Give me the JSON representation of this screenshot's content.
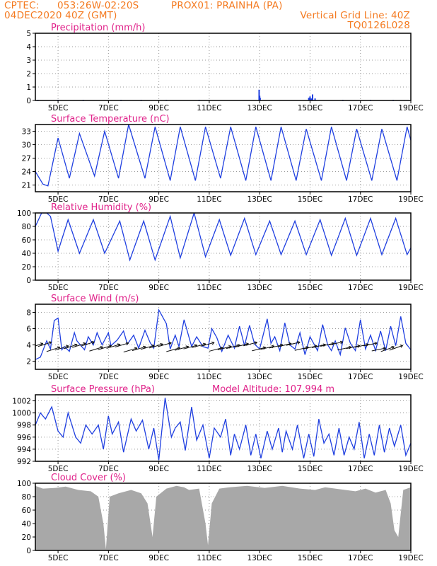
{
  "header": {
    "line1_left": "CPTEC:",
    "line1_coords": "053:26W-02:20S",
    "line1_station": "PROX01: PRAINHA (PA)",
    "line2_left": "04DEC2020 40Z (GMT)",
    "line2_right": "Vertical Grid Line: 40Z",
    "line3_right": "TQ0126L028"
  },
  "colors": {
    "header": "#f47a20",
    "title": "#e0228a",
    "series": "#1f3fe0",
    "cloud": "#a8a8a8",
    "arrows": "#111111"
  },
  "x_axis": {
    "ticks": [
      "5DEC",
      "7DEC",
      "9DEC",
      "11DEC",
      "13DEC",
      "15DEC",
      "17DEC",
      "19DEC"
    ],
    "tick_pos": [
      5,
      7,
      9,
      11,
      13,
      15,
      17,
      19
    ],
    "range": [
      4.1,
      19
    ]
  },
  "chart_data": [
    {
      "type": "bar",
      "title": "Precipitation (mm/h)",
      "ylim": [
        0,
        5
      ],
      "yticks": [
        "0",
        "1",
        "2",
        "3",
        "4",
        "5"
      ],
      "base": 0,
      "x": [
        4.2,
        5.0,
        6.0,
        7.5,
        8.3,
        9.3,
        10.6,
        12.98,
        13.0,
        13.02,
        14.95,
        15.0,
        15.05,
        15.1,
        15.2,
        16.3,
        17.4,
        18.3
      ],
      "values": [
        0.05,
        0.05,
        0.05,
        0.05,
        0.05,
        0.05,
        0.05,
        0.8,
        0.35,
        0.2,
        0.2,
        0.3,
        0.15,
        0.45,
        0.15,
        0.05,
        0.05,
        0.05
      ]
    },
    {
      "type": "line",
      "title": "Surface Temperature (nC)",
      "ylim": [
        19.5,
        34.5
      ],
      "yticks": [
        "21",
        "24",
        "27",
        "30",
        "33"
      ],
      "x": [
        4.1,
        4.4,
        4.6,
        5.0,
        5.45,
        5.85,
        6.45,
        6.85,
        7.4,
        7.8,
        8.45,
        8.85,
        9.45,
        9.85,
        10.45,
        10.85,
        11.45,
        11.85,
        12.45,
        12.85,
        13.45,
        13.85,
        14.45,
        14.85,
        15.45,
        15.85,
        16.45,
        16.85,
        17.45,
        17.85,
        18.45,
        18.85,
        19.0
      ],
      "values": [
        24,
        21.2,
        20.8,
        31.5,
        22.5,
        32.5,
        23,
        33,
        22.5,
        34.5,
        22.5,
        34,
        22,
        34,
        22,
        34,
        22.5,
        34,
        22,
        34,
        22,
        34,
        22,
        33.5,
        22,
        34,
        22,
        33.5,
        22,
        33.5,
        22,
        34,
        31
      ]
    },
    {
      "type": "line",
      "title": "Relative Humidity (%)",
      "ylim": [
        0,
        100
      ],
      "yticks": [
        "0",
        "20",
        "40",
        "60",
        "80",
        "100"
      ],
      "x": [
        4.1,
        4.35,
        4.55,
        4.7,
        5.0,
        5.4,
        5.85,
        6.4,
        6.85,
        7.45,
        7.85,
        8.4,
        8.85,
        9.45,
        9.85,
        10.4,
        10.85,
        11.4,
        11.85,
        12.4,
        12.85,
        13.4,
        13.85,
        14.4,
        14.85,
        15.4,
        15.85,
        16.4,
        16.85,
        17.4,
        17.85,
        18.4,
        18.85,
        19.0
      ],
      "values": [
        80,
        100,
        100,
        95,
        43,
        90,
        40,
        90,
        40,
        88,
        30,
        88,
        30,
        95,
        33,
        100,
        35,
        90,
        37,
        92,
        38,
        88,
        38,
        88,
        38,
        90,
        37,
        92,
        37,
        92,
        38,
        92,
        38,
        48
      ]
    },
    {
      "type": "line",
      "title": "Surface Wind (m/s)",
      "ylim": [
        1,
        9
      ],
      "yticks": [
        "2",
        "4",
        "6",
        "8"
      ],
      "x": [
        4.1,
        4.3,
        4.55,
        4.7,
        4.85,
        5.0,
        5.15,
        5.25,
        5.45,
        5.65,
        5.75,
        6.05,
        6.2,
        6.4,
        6.55,
        6.75,
        7.0,
        7.1,
        7.35,
        7.6,
        7.75,
        8.0,
        8.2,
        8.45,
        8.65,
        8.8,
        9.0,
        9.3,
        9.45,
        9.65,
        9.8,
        10.0,
        10.3,
        10.5,
        10.75,
        10.95,
        11.1,
        11.3,
        11.5,
        11.75,
        12.0,
        12.2,
        12.4,
        12.6,
        12.8,
        13.0,
        13.3,
        13.45,
        13.6,
        13.8,
        14.0,
        14.2,
        14.4,
        14.6,
        14.8,
        15.0,
        15.3,
        15.5,
        15.7,
        15.85,
        16.0,
        16.2,
        16.4,
        16.6,
        16.8,
        17.0,
        17.2,
        17.4,
        17.6,
        17.8,
        18.0,
        18.2,
        18.4,
        18.6,
        18.8,
        19.0
      ],
      "values": [
        2.2,
        2.5,
        4.5,
        3.5,
        7.0,
        7.3,
        3.4,
        3.8,
        3.2,
        5.5,
        4.5,
        3.4,
        5.0,
        4.0,
        5.5,
        4.0,
        5.5,
        3.9,
        4.6,
        5.7,
        4.1,
        5.2,
        3.6,
        5.8,
        4.3,
        3.6,
        8.3,
        6.6,
        3.5,
        5.2,
        3.8,
        7.1,
        3.8,
        5.0,
        3.8,
        3.6,
        6.0,
        4.9,
        3.2,
        5.2,
        3.6,
        6.3,
        3.9,
        6.4,
        4.1,
        3.5,
        7.2,
        4.2,
        5.0,
        3.3,
        6.7,
        4.0,
        3.5,
        5.5,
        2.8,
        5.0,
        3.3,
        6.5,
        4.0,
        3.3,
        4.5,
        2.8,
        6.1,
        4.2,
        3.3,
        7.1,
        3.5,
        5.2,
        3.3,
        5.7,
        3.3,
        6.3,
        3.9,
        7.5,
        4.2,
        3.4
      ]
    },
    {
      "type": "line",
      "title": "Surface Pressure (hPa)",
      "annotation": "Model Altitude: 107.994 m",
      "ylim": [
        992,
        1003
      ],
      "yticks": [
        "992",
        "994",
        "996",
        "998",
        "1000",
        "1002"
      ],
      "x": [
        4.1,
        4.3,
        4.5,
        4.75,
        5.0,
        5.2,
        5.4,
        5.7,
        5.9,
        6.1,
        6.35,
        6.6,
        6.8,
        7.0,
        7.15,
        7.4,
        7.6,
        7.9,
        8.1,
        8.35,
        8.6,
        8.8,
        9.0,
        9.25,
        9.5,
        9.65,
        9.85,
        10.05,
        10.3,
        10.5,
        10.75,
        11.0,
        11.2,
        11.45,
        11.65,
        11.85,
        12.0,
        12.2,
        12.45,
        12.65,
        12.85,
        13.05,
        13.3,
        13.5,
        13.75,
        13.9,
        14.05,
        14.3,
        14.5,
        14.75,
        14.95,
        15.15,
        15.35,
        15.55,
        15.75,
        15.95,
        16.15,
        16.35,
        16.55,
        16.75,
        16.95,
        17.15,
        17.35,
        17.55,
        17.75,
        17.95,
        18.15,
        18.35,
        18.6,
        18.8,
        19.0
      ],
      "values": [
        998,
        1000,
        999,
        1001,
        997,
        996,
        1000,
        996,
        995,
        998,
        996.5,
        998,
        994,
        999.5,
        996.5,
        998.5,
        993.5,
        999,
        997,
        998.8,
        994,
        997.5,
        992.2,
        1002.5,
        996,
        997.5,
        998.5,
        993.8,
        1001,
        995.5,
        998,
        992.5,
        997.5,
        996,
        999,
        993,
        996.5,
        994,
        998,
        993,
        996.5,
        992.5,
        997,
        994,
        997.5,
        993.5,
        997,
        994,
        998,
        992.5,
        996.5,
        992.8,
        999,
        995,
        996.5,
        993,
        997.5,
        993,
        996,
        994,
        998.5,
        992.5,
        996.5,
        993,
        998,
        993.5,
        997.5,
        994.5,
        998,
        993,
        995
      ]
    },
    {
      "type": "area",
      "title": "Cloud Cover (%)",
      "ylim": [
        0,
        100
      ],
      "yticks": [
        "0",
        "20",
        "40",
        "60",
        "80",
        "100"
      ],
      "x": [
        4.1,
        4.4,
        4.9,
        5.3,
        5.8,
        6.3,
        6.6,
        6.8,
        6.9,
        7.05,
        7.4,
        7.9,
        8.3,
        8.55,
        8.75,
        8.9,
        9.3,
        9.7,
        10.0,
        10.2,
        10.6,
        10.85,
        10.95,
        11.1,
        11.4,
        11.8,
        12.5,
        13.2,
        13.9,
        14.6,
        15.2,
        15.6,
        16.0,
        16.4,
        16.8,
        17.2,
        17.6,
        18.0,
        18.2,
        18.35,
        18.5,
        18.7,
        19.0
      ],
      "values": [
        96,
        92,
        93,
        95,
        90,
        88,
        80,
        40,
        2,
        80,
        85,
        90,
        85,
        70,
        20,
        80,
        92,
        96,
        94,
        90,
        92,
        40,
        8,
        70,
        92,
        94,
        96,
        93,
        96,
        92,
        90,
        94,
        92,
        90,
        88,
        92,
        86,
        90,
        70,
        30,
        20,
        90,
        94
      ]
    }
  ]
}
